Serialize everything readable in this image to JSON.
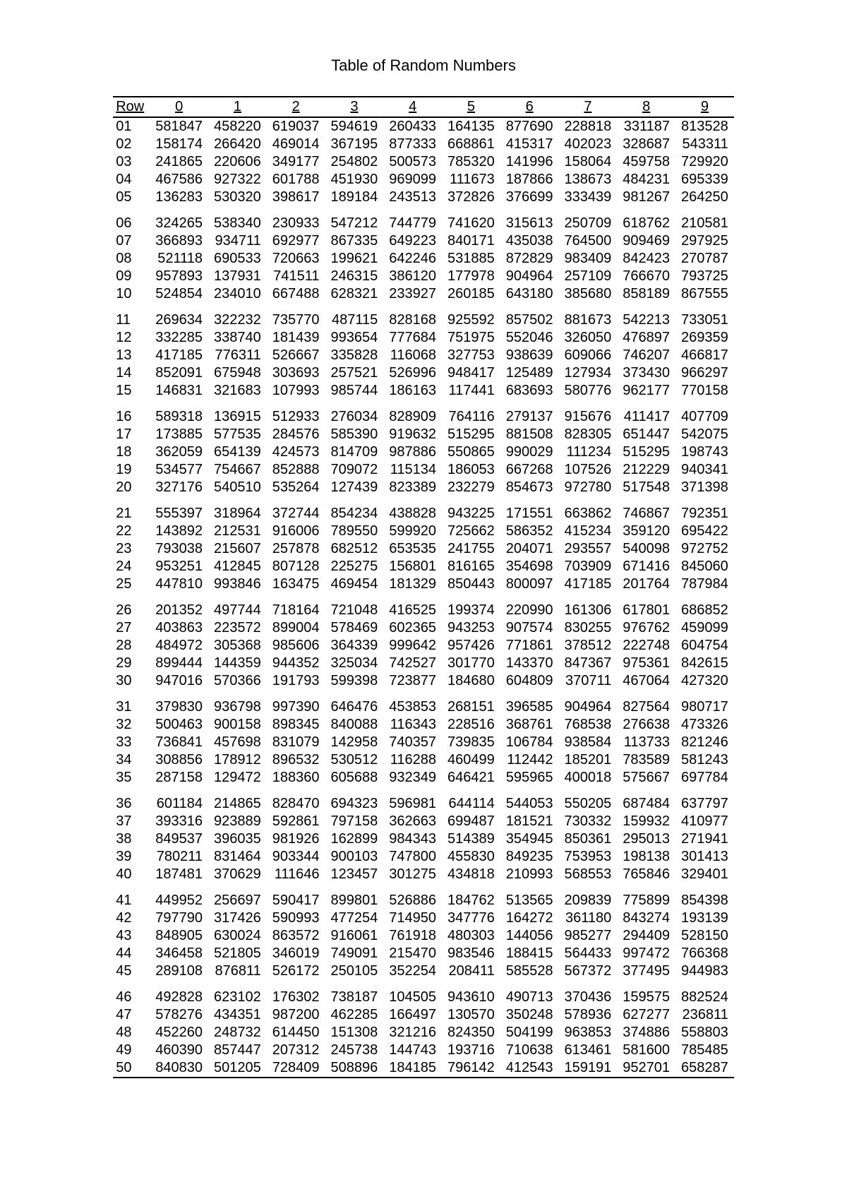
{
  "title": "Table of Random Numbers",
  "header": {
    "row_label": "Row",
    "cols": [
      "0",
      "1",
      "2",
      "3",
      "4",
      "5",
      "6",
      "7",
      "8",
      "9"
    ]
  },
  "group_size": 5,
  "font": {
    "family": "Arial",
    "title_size": 22,
    "body_size": 20
  },
  "colors": {
    "text": "#000000",
    "background": "#ffffff",
    "rule": "#000000"
  },
  "rows": [
    {
      "r": "01",
      "v": [
        "581847",
        "458220",
        "619037",
        "594619",
        "260433",
        "164135",
        "877690",
        "228818",
        "331187",
        "813528"
      ]
    },
    {
      "r": "02",
      "v": [
        "158174",
        "266420",
        "469014",
        "367195",
        "877333",
        "668861",
        "415317",
        "402023",
        "328687",
        "543311"
      ]
    },
    {
      "r": "03",
      "v": [
        "241865",
        "220606",
        "349177",
        "254802",
        "500573",
        "785320",
        "141996",
        "158064",
        "459758",
        "729920"
      ]
    },
    {
      "r": "04",
      "v": [
        "467586",
        "927322",
        "601788",
        "451930",
        "969099",
        "111673",
        "187866",
        "138673",
        "484231",
        "695339"
      ]
    },
    {
      "r": "05",
      "v": [
        "136283",
        "530320",
        "398617",
        "189184",
        "243513",
        "372826",
        "376699",
        "333439",
        "981267",
        "264250"
      ]
    },
    {
      "r": "06",
      "v": [
        "324265",
        "538340",
        "230933",
        "547212",
        "744779",
        "741620",
        "315613",
        "250709",
        "618762",
        "210581"
      ]
    },
    {
      "r": "07",
      "v": [
        "366893",
        "934711",
        "692977",
        "867335",
        "649223",
        "840171",
        "435038",
        "764500",
        "909469",
        "297925"
      ]
    },
    {
      "r": "08",
      "v": [
        "521118",
        "690533",
        "720663",
        "199621",
        "642246",
        "531885",
        "872829",
        "983409",
        "842423",
        "270787"
      ]
    },
    {
      "r": "09",
      "v": [
        "957893",
        "137931",
        "741511",
        "246315",
        "386120",
        "177978",
        "904964",
        "257109",
        "766670",
        "793725"
      ]
    },
    {
      "r": "10",
      "v": [
        "524854",
        "234010",
        "667488",
        "628321",
        "233927",
        "260185",
        "643180",
        "385680",
        "858189",
        "867555"
      ]
    },
    {
      "r": "11",
      "v": [
        "269634",
        "322232",
        "735770",
        "487115",
        "828168",
        "925592",
        "857502",
        "881673",
        "542213",
        "733051"
      ]
    },
    {
      "r": "12",
      "v": [
        "332285",
        "338740",
        "181439",
        "993654",
        "777684",
        "751975",
        "552046",
        "326050",
        "476897",
        "269359"
      ]
    },
    {
      "r": "13",
      "v": [
        "417185",
        "776311",
        "526667",
        "335828",
        "116068",
        "327753",
        "938639",
        "609066",
        "746207",
        "466817"
      ]
    },
    {
      "r": "14",
      "v": [
        "852091",
        "675948",
        "303693",
        "257521",
        "526996",
        "948417",
        "125489",
        "127934",
        "373430",
        "966297"
      ]
    },
    {
      "r": "15",
      "v": [
        "146831",
        "321683",
        "107993",
        "985744",
        "186163",
        "117441",
        "683693",
        "580776",
        "962177",
        "770158"
      ]
    },
    {
      "r": "16",
      "v": [
        "589318",
        "136915",
        "512933",
        "276034",
        "828909",
        "764116",
        "279137",
        "915676",
        "411417",
        "407709"
      ]
    },
    {
      "r": "17",
      "v": [
        "173885",
        "577535",
        "284576",
        "585390",
        "919632",
        "515295",
        "881508",
        "828305",
        "651447",
        "542075"
      ]
    },
    {
      "r": "18",
      "v": [
        "362059",
        "654139",
        "424573",
        "814709",
        "987886",
        "550865",
        "990029",
        "111234",
        "515295",
        "198743"
      ]
    },
    {
      "r": "19",
      "v": [
        "534577",
        "754667",
        "852888",
        "709072",
        "115134",
        "186053",
        "667268",
        "107526",
        "212229",
        "940341"
      ]
    },
    {
      "r": "20",
      "v": [
        "327176",
        "540510",
        "535264",
        "127439",
        "823389",
        "232279",
        "854673",
        "972780",
        "517548",
        "371398"
      ]
    },
    {
      "r": "21",
      "v": [
        "555397",
        "318964",
        "372744",
        "854234",
        "438828",
        "943225",
        "171551",
        "663862",
        "746867",
        "792351"
      ]
    },
    {
      "r": "22",
      "v": [
        "143892",
        "212531",
        "916006",
        "789550",
        "599920",
        "725662",
        "586352",
        "415234",
        "359120",
        "695422"
      ]
    },
    {
      "r": "23",
      "v": [
        "793038",
        "215607",
        "257878",
        "682512",
        "653535",
        "241755",
        "204071",
        "293557",
        "540098",
        "972752"
      ]
    },
    {
      "r": "24",
      "v": [
        "953251",
        "412845",
        "807128",
        "225275",
        "156801",
        "816165",
        "354698",
        "703909",
        "671416",
        "845060"
      ]
    },
    {
      "r": "25",
      "v": [
        "447810",
        "993846",
        "163475",
        "469454",
        "181329",
        "850443",
        "800097",
        "417185",
        "201764",
        "787984"
      ]
    },
    {
      "r": "26",
      "v": [
        "201352",
        "497744",
        "718164",
        "721048",
        "416525",
        "199374",
        "220990",
        "161306",
        "617801",
        "686852"
      ]
    },
    {
      "r": "27",
      "v": [
        "403863",
        "223572",
        "899004",
        "578469",
        "602365",
        "943253",
        "907574",
        "830255",
        "976762",
        "459099"
      ]
    },
    {
      "r": "28",
      "v": [
        "484972",
        "305368",
        "985606",
        "364339",
        "999642",
        "957426",
        "771861",
        "378512",
        "222748",
        "604754"
      ]
    },
    {
      "r": "29",
      "v": [
        "899444",
        "144359",
        "944352",
        "325034",
        "742527",
        "301770",
        "143370",
        "847367",
        "975361",
        "842615"
      ]
    },
    {
      "r": "30",
      "v": [
        "947016",
        "570366",
        "191793",
        "599398",
        "723877",
        "184680",
        "604809",
        "370711",
        "467064",
        "427320"
      ]
    },
    {
      "r": "31",
      "v": [
        "379830",
        "936798",
        "997390",
        "646476",
        "453853",
        "268151",
        "396585",
        "904964",
        "827564",
        "980717"
      ]
    },
    {
      "r": "32",
      "v": [
        "500463",
        "900158",
        "898345",
        "840088",
        "116343",
        "228516",
        "368761",
        "768538",
        "276638",
        "473326"
      ]
    },
    {
      "r": "33",
      "v": [
        "736841",
        "457698",
        "831079",
        "142958",
        "740357",
        "739835",
        "106784",
        "938584",
        "113733",
        "821246"
      ]
    },
    {
      "r": "34",
      "v": [
        "308856",
        "178912",
        "896532",
        "530512",
        "116288",
        "460499",
        "112442",
        "185201",
        "783589",
        "581243"
      ]
    },
    {
      "r": "35",
      "v": [
        "287158",
        "129472",
        "188360",
        "605688",
        "932349",
        "646421",
        "595965",
        "400018",
        "575667",
        "697784"
      ]
    },
    {
      "r": "36",
      "v": [
        "601184",
        "214865",
        "828470",
        "694323",
        "596981",
        "644114",
        "544053",
        "550205",
        "687484",
        "637797"
      ]
    },
    {
      "r": "37",
      "v": [
        "393316",
        "923889",
        "592861",
        "797158",
        "362663",
        "699487",
        "181521",
        "730332",
        "159932",
        "410977"
      ]
    },
    {
      "r": "38",
      "v": [
        "849537",
        "396035",
        "981926",
        "162899",
        "984343",
        "514389",
        "354945",
        "850361",
        "295013",
        "271941"
      ]
    },
    {
      "r": "39",
      "v": [
        "780211",
        "831464",
        "903344",
        "900103",
        "747800",
        "455830",
        "849235",
        "753953",
        "198138",
        "301413"
      ]
    },
    {
      "r": "40",
      "v": [
        "187481",
        "370629",
        "111646",
        "123457",
        "301275",
        "434818",
        "210993",
        "568553",
        "765846",
        "329401"
      ]
    },
    {
      "r": "41",
      "v": [
        "449952",
        "256697",
        "590417",
        "899801",
        "526886",
        "184762",
        "513565",
        "209839",
        "775899",
        "854398"
      ]
    },
    {
      "r": "42",
      "v": [
        "797790",
        "317426",
        "590993",
        "477254",
        "714950",
        "347776",
        "164272",
        "361180",
        "843274",
        "193139"
      ]
    },
    {
      "r": "43",
      "v": [
        "848905",
        "630024",
        "863572",
        "916061",
        "761918",
        "480303",
        "144056",
        "985277",
        "294409",
        "528150"
      ]
    },
    {
      "r": "44",
      "v": [
        "346458",
        "521805",
        "346019",
        "749091",
        "215470",
        "983546",
        "188415",
        "564433",
        "997472",
        "766368"
      ]
    },
    {
      "r": "45",
      "v": [
        "289108",
        "876811",
        "526172",
        "250105",
        "352254",
        "208411",
        "585528",
        "567372",
        "377495",
        "944983"
      ]
    },
    {
      "r": "46",
      "v": [
        "492828",
        "623102",
        "176302",
        "738187",
        "104505",
        "943610",
        "490713",
        "370436",
        "159575",
        "882524"
      ]
    },
    {
      "r": "47",
      "v": [
        "578276",
        "434351",
        "987200",
        "462285",
        "166497",
        "130570",
        "350248",
        "578936",
        "627277",
        "236811"
      ]
    },
    {
      "r": "48",
      "v": [
        "452260",
        "248732",
        "614450",
        "151308",
        "321216",
        "824350",
        "504199",
        "963853",
        "374886",
        "558803"
      ]
    },
    {
      "r": "49",
      "v": [
        "460390",
        "857447",
        "207312",
        "245738",
        "144743",
        "193716",
        "710638",
        "613461",
        "581600",
        "785485"
      ]
    },
    {
      "r": "50",
      "v": [
        "840830",
        "501205",
        "728409",
        "508896",
        "184185",
        "796142",
        "412543",
        "159191",
        "952701",
        "658287"
      ]
    }
  ]
}
